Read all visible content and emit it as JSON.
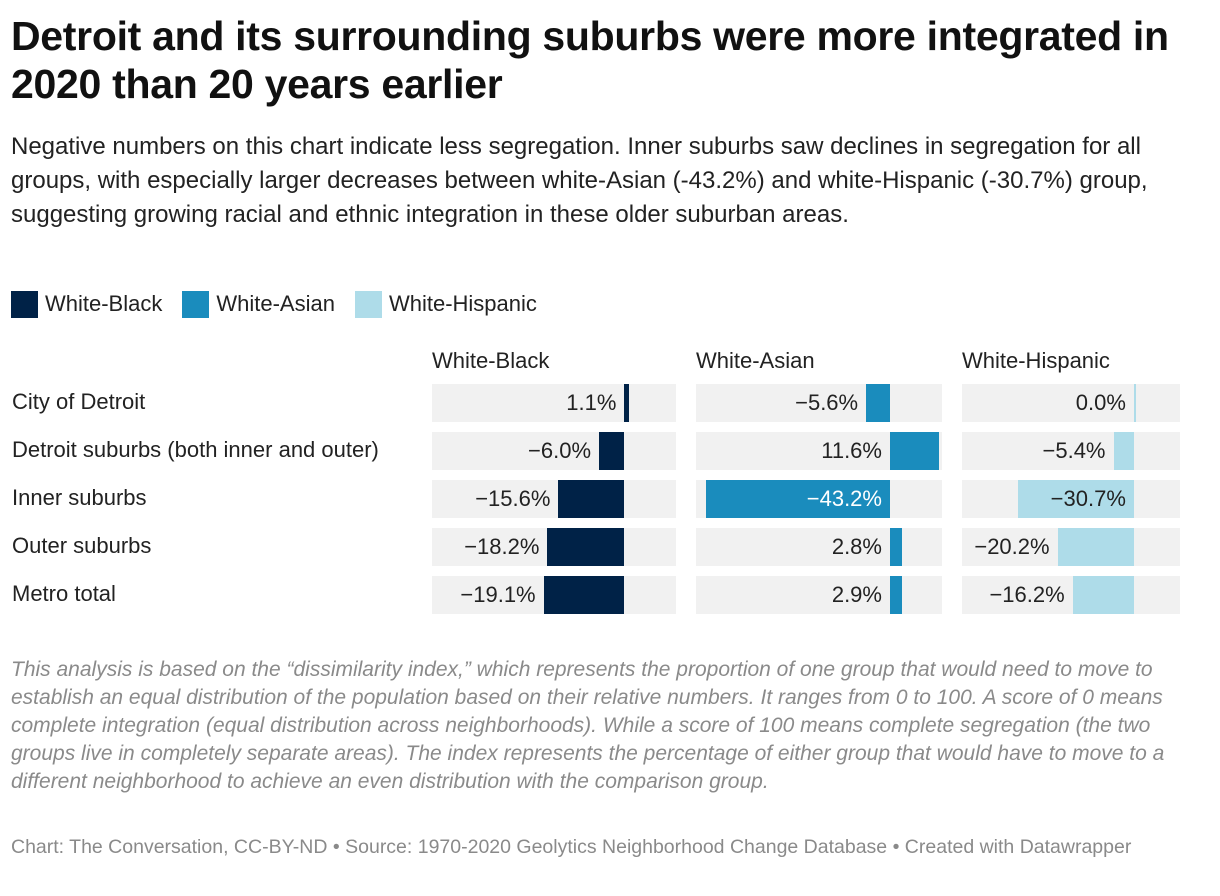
{
  "header": {
    "title": "Detroit and its surrounding suburbs were more integrated in 2020 than 20 years earlier",
    "subtitle": "Negative numbers on this chart indicate less segregation. Inner suburbs saw declines in segregation for all groups, with especially larger decreases between white-Asian (-43.2%) and white-Hispanic (-30.7%) group, suggesting growing racial and ethnic integration in these older suburban areas."
  },
  "legend": [
    {
      "label": "White-Black",
      "color": "#002247"
    },
    {
      "label": "White-Asian",
      "color": "#1a8cbd"
    },
    {
      "label": "White-Hispanic",
      "color": "#aedce9"
    }
  ],
  "chart_data": {
    "type": "bar",
    "orientation": "horizontal",
    "layout": "split-bars",
    "categories": [
      "City of Detroit",
      "Detroit suburbs (both inner and outer)",
      "Inner suburbs",
      "Outer suburbs",
      "Metro total"
    ],
    "series": [
      {
        "name": "White-Black",
        "color": "#002247",
        "values": [
          1.1,
          -6.0,
          -15.6,
          -18.2,
          -19.1
        ],
        "labels": [
          "1.1%",
          "−6.0%",
          "−15.6%",
          "−18.2%",
          "−19.1%"
        ]
      },
      {
        "name": "White-Asian",
        "color": "#1a8cbd",
        "values": [
          -5.6,
          11.6,
          -43.2,
          2.8,
          2.9
        ],
        "labels": [
          "−5.6%",
          "11.6%",
          "−43.2%",
          "2.8%",
          "2.9%"
        ]
      },
      {
        "name": "White-Hispanic",
        "color": "#aedce9",
        "values": [
          0.0,
          -5.4,
          -30.7,
          -20.2,
          -16.2
        ],
        "labels": [
          "0.0%",
          "−5.4%",
          "−30.7%",
          "−20.2%",
          "−16.2%"
        ]
      }
    ]
  },
  "notes": {
    "text": "This analysis is based on the “dissimilarity index,” which represents the proportion of one group that would need to move to establish an equal distribution of the population based on their relative numbers. It ranges from 0 to 100. A score of 0 means complete integration (equal distribution across neighborhoods). While a score of 100 means complete segregation (the two groups live in completely separate areas). The index represents the percentage of either group that would have to move to a different neighborhood to achieve an even distribution with the comparison group."
  },
  "footer": {
    "text": "Chart: The Conversation, CC-BY-ND • Source: 1970-2020 Geolytics Neighborhood Change Database  • Created with Datawrapper"
  }
}
